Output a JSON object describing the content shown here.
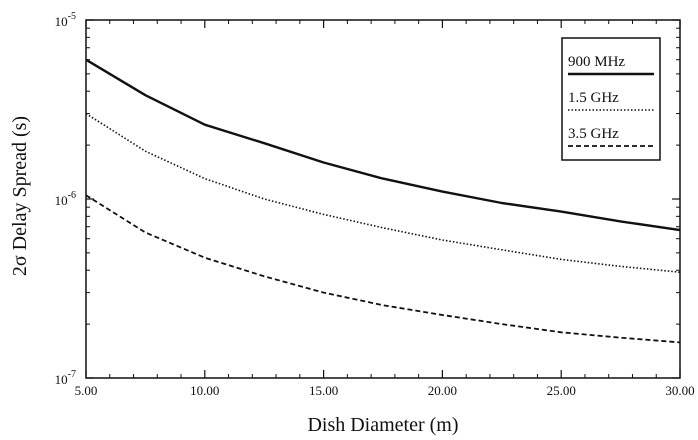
{
  "chart_data": {
    "type": "line",
    "title": "",
    "xlabel": "Dish Diameter (m)",
    "ylabel_parts": {
      "prefix": "2",
      "sigma": "σ",
      "suffix": " Delay Spread (s)"
    },
    "ylabel": "2σ Delay Spread (s)",
    "x_scale": "linear",
    "y_scale": "log",
    "xlim": [
      5,
      30
    ],
    "ylim": [
      1e-07,
      1e-05
    ],
    "x_ticks": [
      5,
      10,
      15,
      20,
      25,
      30
    ],
    "x_tick_labels": [
      "5.00",
      "10.00",
      "15.00",
      "20.00",
      "25.00",
      "30.00"
    ],
    "y_ticks": [
      {
        "value": 1e-05,
        "base": "10",
        "exp": "-5"
      },
      {
        "value": 1e-06,
        "base": "10",
        "exp": "-6"
      },
      {
        "value": 1e-07,
        "base": "10",
        "exp": "-7"
      }
    ],
    "grid": false,
    "legend_position": "top-right",
    "x": [
      5,
      7.5,
      10,
      12.5,
      15,
      17.5,
      20,
      22.5,
      25,
      27.5,
      30
    ],
    "series": [
      {
        "name": "900 MHz",
        "style": "solid",
        "values": [
          6e-06,
          3.8e-06,
          2.6e-06,
          2.05e-06,
          1.6e-06,
          1.3e-06,
          1.1e-06,
          9.5e-07,
          8.5e-07,
          7.5e-07,
          6.7e-07
        ]
      },
      {
        "name": "1.5 GHz",
        "style": "dotted",
        "values": [
          3e-06,
          1.85e-06,
          1.3e-06,
          1e-06,
          8.2e-07,
          6.9e-07,
          5.9e-07,
          5.2e-07,
          4.6e-07,
          4.2e-07,
          3.9e-07
        ]
      },
      {
        "name": "3.5 GHz",
        "style": "dashed",
        "values": [
          1.05e-06,
          6.5e-07,
          4.7e-07,
          3.7e-07,
          3e-07,
          2.55e-07,
          2.25e-07,
          2e-07,
          1.8e-07,
          1.68e-07,
          1.58e-07
        ]
      }
    ]
  }
}
